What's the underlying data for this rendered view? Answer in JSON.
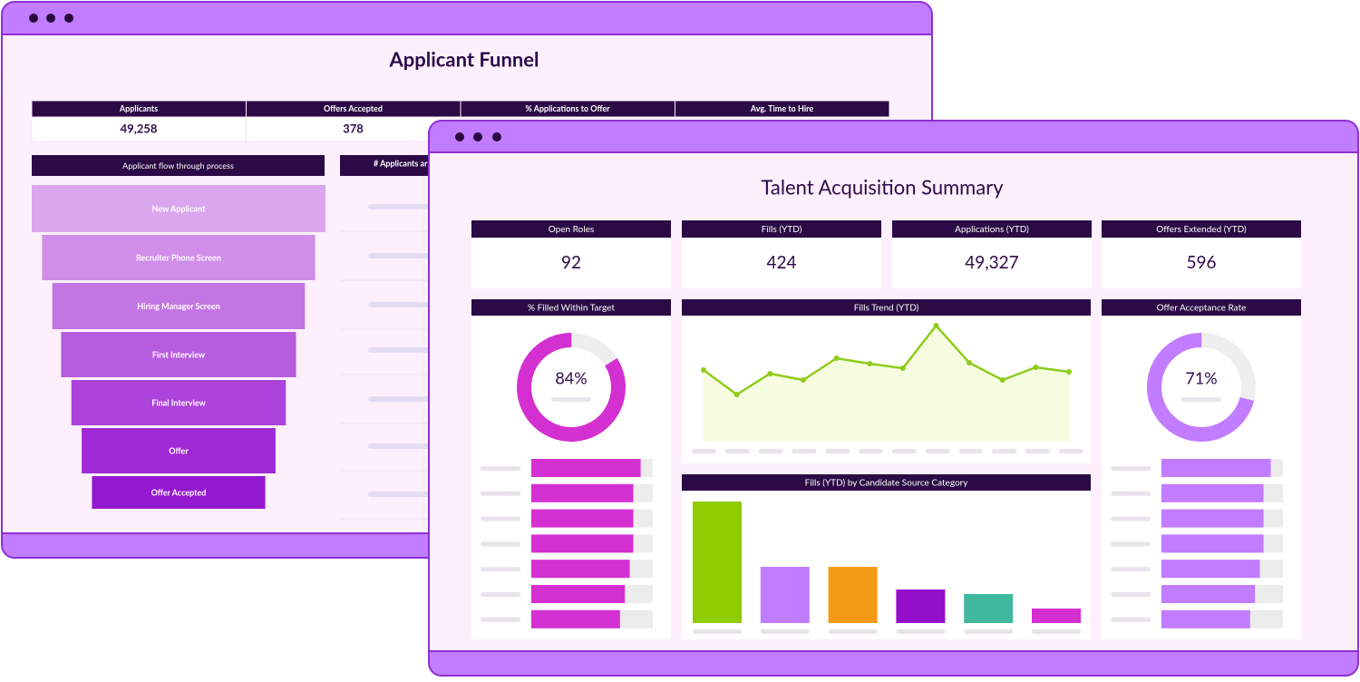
{
  "back_window": {
    "title": "Applicant Funnel",
    "kpis": [
      {
        "label": "Applicants",
        "value": "49,258"
      },
      {
        "label": "Offers Accepted",
        "value": "378"
      },
      {
        "label": "% Applications to Offer"
      },
      {
        "label": "Avg. Time to Hire"
      }
    ],
    "funnel": {
      "title": "Applicant flow through process",
      "stages": [
        "New Applicant",
        "Recruiter Phone Screen",
        "Hiring Manager Screen",
        "First Interview",
        "Final Interview",
        "Offer",
        "Offer Accepted"
      ],
      "values": [
        100,
        93,
        86,
        80,
        73,
        66,
        59
      ],
      "xlim": [
        0,
        100
      ],
      "colors": [
        "#dba6ee",
        "#d08ee9",
        "#c475e4",
        "#b85cdf",
        "#ac43da",
        "#a02ad5",
        "#9518d0"
      ]
    },
    "side_panel": {
      "title": "# Applicants ar"
    }
  },
  "front_window": {
    "title": "Talent Acquisition Summary",
    "kpis": [
      {
        "label": "Open Roles",
        "value": "92"
      },
      {
        "label": "Fills (YTD)",
        "value": "424"
      },
      {
        "label": "Applications (YTD)",
        "value": "49,327"
      },
      {
        "label": "Offers Extended (YTD)",
        "value": "596"
      }
    ],
    "filled_within_target": {
      "title": "% Filled Within Target",
      "value": 84,
      "value_label": "84%",
      "range": [
        0,
        100
      ],
      "color": "#d42fd0",
      "bars": {
        "values": [
          90,
          84,
          84,
          84,
          81,
          77,
          73
        ],
        "xlim": [
          0,
          100
        ]
      }
    },
    "fills_trend": {
      "title": "Fills Trend (YTD)",
      "type": "line",
      "values": [
        79,
        52,
        75,
        68,
        92,
        86,
        81,
        128,
        87,
        68,
        82,
        77
      ],
      "ylim": [
        0,
        140
      ],
      "color": "#8fcc1a",
      "fill": "#f6fce0"
    },
    "fills_by_source": {
      "title": "Fills (YTD) by Candidate Source Category",
      "type": "bar",
      "values": [
        134,
        62,
        62,
        37,
        32,
        16
      ],
      "colors": [
        "#8fcc00",
        "#c07cff",
        "#f59a15",
        "#9410cc",
        "#40b89e",
        "#d42fd0"
      ],
      "ylim": [
        0,
        140
      ]
    },
    "offer_acceptance_rate": {
      "title": "Offer Acceptance Rate",
      "value": 71,
      "value_label": "71%",
      "range": [
        0,
        100
      ],
      "color": "#c27cff",
      "bars": {
        "values": [
          90,
          84,
          84,
          84,
          81,
          77,
          73
        ],
        "xlim": [
          0,
          100
        ]
      }
    }
  }
}
